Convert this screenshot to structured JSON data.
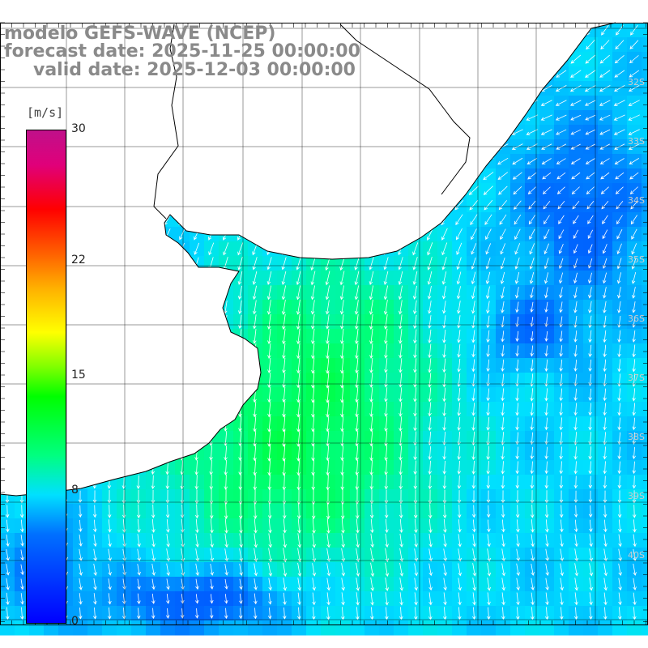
{
  "titles": {
    "line1": "modelo GEFS-WAVE (NCEP)",
    "line2": "forecast date: 2025-11-25 00:00:00",
    "line3": "valid date: 2025-12-03 00:00:00"
  },
  "colorbar": {
    "unit": "[m/s]",
    "ticks": [
      {
        "label": "30",
        "value": 30
      },
      {
        "label": "22",
        "value": 22
      },
      {
        "label": "15",
        "value": 15
      },
      {
        "label": "8",
        "value": 8
      },
      {
        "label": "0",
        "value": 0
      }
    ],
    "min": 0,
    "max": 30
  },
  "lat_labels": [
    "32S",
    "33S",
    "34S",
    "35S",
    "36S",
    "37S",
    "38S",
    "39S",
    "40S"
  ],
  "colors": {
    "land": "#ffffff",
    "grid": "#000000",
    "arrows": "#ffffff",
    "title": "#8a8a8a"
  }
}
